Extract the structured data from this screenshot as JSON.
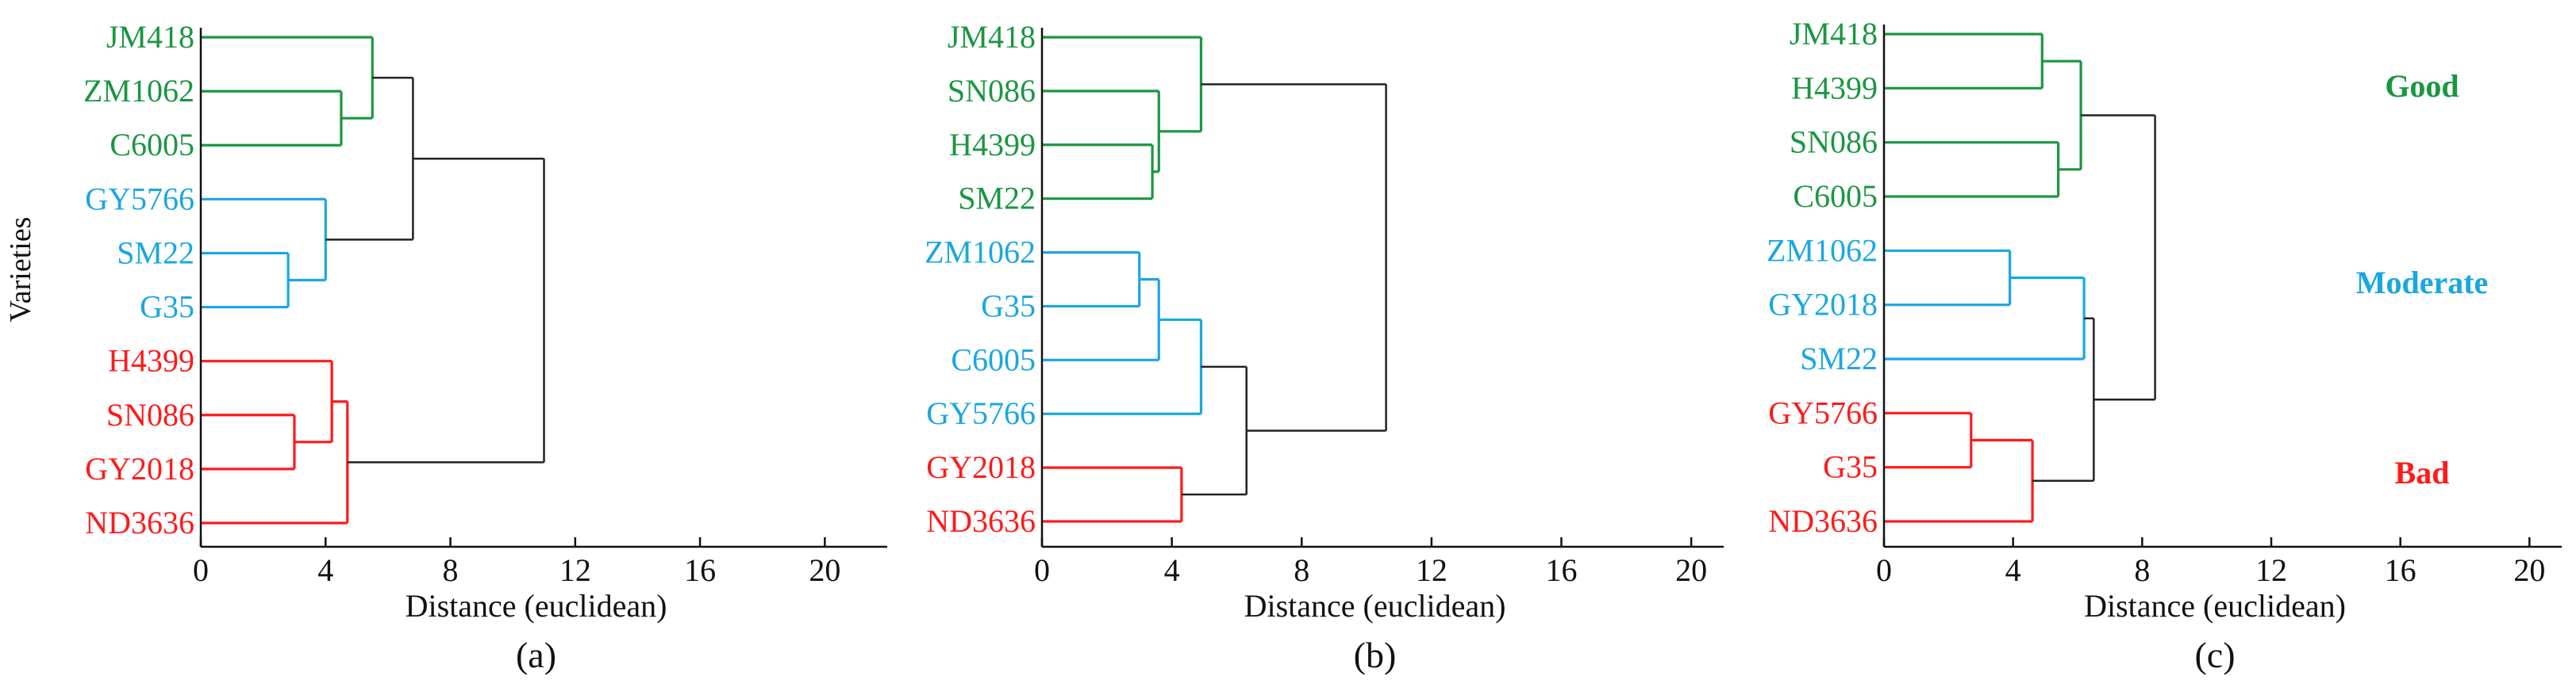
{
  "figure": {
    "y_axis_label": "Varieties",
    "colors": {
      "good": "#1a9641",
      "moderate": "#1aa7e0",
      "bad": "#ff1a1a",
      "link": "#222222",
      "axis": "#111111"
    }
  },
  "chart_data": [
    {
      "type": "dendrogram",
      "panel_label": "(a)",
      "xlabel": "Distance (euclidean)",
      "ylabel": "Varieties",
      "xlim": [
        0,
        22
      ],
      "xticks": [
        0,
        4,
        8,
        12,
        16,
        20
      ],
      "leaves": [
        {
          "name": "JM418",
          "group": "good"
        },
        {
          "name": "ZM1062",
          "group": "good"
        },
        {
          "name": "C6005",
          "group": "good"
        },
        {
          "name": "GY5766",
          "group": "moderate"
        },
        {
          "name": "SM22",
          "group": "moderate"
        },
        {
          "name": "G35",
          "group": "moderate"
        },
        {
          "name": "H4399",
          "group": "bad"
        },
        {
          "name": "SN086",
          "group": "bad"
        },
        {
          "name": "GY2018",
          "group": "bad"
        },
        {
          "name": "ND3636",
          "group": "bad"
        }
      ],
      "merges": [
        {
          "left": 1,
          "right": 2,
          "height": 4.5,
          "group": "good"
        },
        {
          "left": 0,
          "right": -1,
          "height": 5.5,
          "group": "good"
        },
        {
          "left": 4,
          "right": 5,
          "height": 2.8,
          "group": "moderate"
        },
        {
          "left": 3,
          "right": -3,
          "height": 4.0,
          "group": "moderate"
        },
        {
          "left": -2,
          "right": -4,
          "height": 6.8,
          "group": "link"
        },
        {
          "left": 7,
          "right": 8,
          "height": 3.0,
          "group": "bad"
        },
        {
          "left": 6,
          "right": -6,
          "height": 4.2,
          "group": "bad"
        },
        {
          "left": -7,
          "right": 9,
          "height": 4.7,
          "group": "bad"
        },
        {
          "left": -5,
          "right": -8,
          "height": 11.0,
          "group": "link"
        }
      ]
    },
    {
      "type": "dendrogram",
      "panel_label": "(b)",
      "xlabel": "Distance (euclidean)",
      "xlim": [
        0,
        21
      ],
      "xticks": [
        0,
        4,
        8,
        12,
        16,
        20
      ],
      "leaves": [
        {
          "name": "JM418",
          "group": "good"
        },
        {
          "name": "SN086",
          "group": "good"
        },
        {
          "name": "H4399",
          "group": "good"
        },
        {
          "name": "SM22",
          "group": "good"
        },
        {
          "name": "ZM1062",
          "group": "moderate"
        },
        {
          "name": "G35",
          "group": "moderate"
        },
        {
          "name": "C6005",
          "group": "moderate"
        },
        {
          "name": "GY5766",
          "group": "moderate"
        },
        {
          "name": "GY2018",
          "group": "bad"
        },
        {
          "name": "ND3636",
          "group": "bad"
        }
      ],
      "merges": [
        {
          "left": 2,
          "right": 3,
          "height": 3.4,
          "group": "good"
        },
        {
          "left": 1,
          "right": -1,
          "height": 3.6,
          "group": "good"
        },
        {
          "left": 0,
          "right": -2,
          "height": 4.9,
          "group": "good"
        },
        {
          "left": 4,
          "right": 5,
          "height": 3.0,
          "group": "moderate"
        },
        {
          "left": -4,
          "right": 6,
          "height": 3.6,
          "group": "moderate"
        },
        {
          "left": -5,
          "right": 7,
          "height": 4.9,
          "group": "moderate"
        },
        {
          "left": 8,
          "right": 9,
          "height": 4.3,
          "group": "bad"
        },
        {
          "left": -6,
          "right": -7,
          "height": 6.3,
          "group": "link"
        },
        {
          "left": -3,
          "right": -8,
          "height": 10.6,
          "group": "link"
        }
      ]
    },
    {
      "type": "dendrogram",
      "panel_label": "(c)",
      "xlabel": "Distance (euclidean)",
      "xlim": [
        0,
        21
      ],
      "xticks": [
        0,
        4,
        8,
        12,
        16,
        20
      ],
      "legend": [
        {
          "label": "Good",
          "group": "good"
        },
        {
          "label": "Moderate",
          "group": "moderate"
        },
        {
          "label": "Bad",
          "group": "bad"
        }
      ],
      "leaves": [
        {
          "name": "JM418",
          "group": "good"
        },
        {
          "name": "H4399",
          "group": "good"
        },
        {
          "name": "SN086",
          "group": "good"
        },
        {
          "name": "C6005",
          "group": "good"
        },
        {
          "name": "ZM1062",
          "group": "moderate"
        },
        {
          "name": "GY2018",
          "group": "moderate"
        },
        {
          "name": "SM22",
          "group": "moderate"
        },
        {
          "name": "GY5766",
          "group": "bad"
        },
        {
          "name": "G35",
          "group": "bad"
        },
        {
          "name": "ND3636",
          "group": "bad"
        }
      ],
      "merges": [
        {
          "left": 0,
          "right": 1,
          "height": 4.9,
          "group": "good"
        },
        {
          "left": 2,
          "right": 3,
          "height": 5.4,
          "group": "good"
        },
        {
          "left": -1,
          "right": -2,
          "height": 6.1,
          "group": "good"
        },
        {
          "left": 4,
          "right": 5,
          "height": 3.9,
          "group": "moderate"
        },
        {
          "left": -4,
          "right": 6,
          "height": 6.2,
          "group": "moderate"
        },
        {
          "left": 7,
          "right": 8,
          "height": 2.7,
          "group": "bad"
        },
        {
          "left": -6,
          "right": 9,
          "height": 4.6,
          "group": "bad"
        },
        {
          "left": -5,
          "right": -7,
          "height": 6.5,
          "group": "link"
        },
        {
          "left": -3,
          "right": -8,
          "height": 8.4,
          "group": "link"
        }
      ]
    }
  ]
}
